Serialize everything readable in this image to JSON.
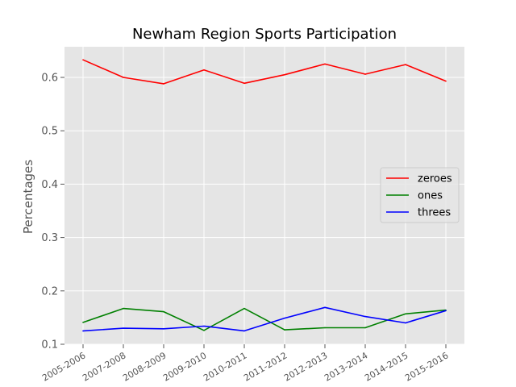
{
  "chart_data": {
    "type": "line",
    "title": "Newham Region Sports Participation",
    "xlabel": "",
    "ylabel": "Percentages",
    "categories": [
      "2005-2006",
      "2007-2008",
      "2008-2009",
      "2009-2010",
      "2010-2011",
      "2011-2012",
      "2012-2013",
      "2013-2014",
      "2014-2015",
      "2015-2016"
    ],
    "ylim": [
      0.1,
      0.65
    ],
    "yticks": [
      0.1,
      0.2,
      0.3,
      0.4,
      0.5,
      0.6
    ],
    "ytick_labels": [
      "0.1",
      "0.2",
      "0.3",
      "0.4",
      "0.5",
      "0.6"
    ],
    "grid": true,
    "legend_position": "center-right",
    "series": [
      {
        "name": "zeroes",
        "color": "#ff0000",
        "values": [
          0.633,
          0.6,
          0.588,
          0.614,
          0.589,
          0.605,
          0.625,
          0.606,
          0.624,
          0.593
        ]
      },
      {
        "name": "ones",
        "color": "#008000",
        "values": [
          0.141,
          0.167,
          0.161,
          0.126,
          0.167,
          0.127,
          0.131,
          0.131,
          0.157,
          0.164
        ]
      },
      {
        "name": "threes",
        "color": "#0000ff",
        "values": [
          0.125,
          0.13,
          0.129,
          0.134,
          0.125,
          0.149,
          0.169,
          0.152,
          0.14,
          0.163
        ]
      }
    ],
    "colors": {
      "plot_background": "#e5e5e5",
      "grid": "#ffffff"
    }
  }
}
